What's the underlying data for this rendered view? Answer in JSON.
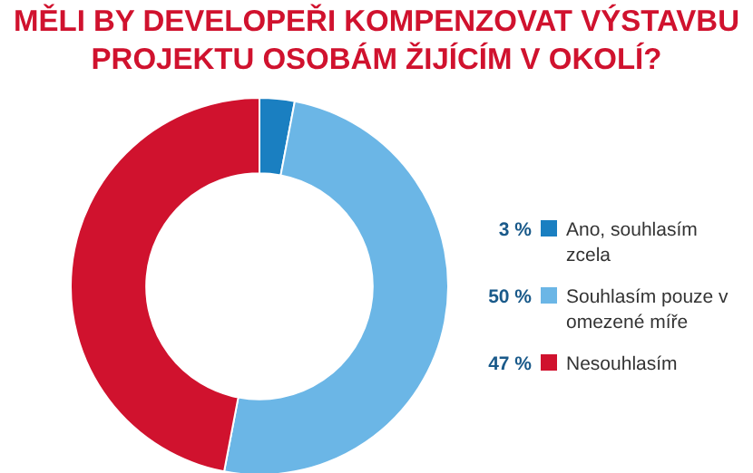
{
  "chart_data": {
    "type": "donut",
    "title": "MĚLI BY DEVELOPEŘI KOMPENZOVAT VÝSTAVBU PROJEKTU OSOBÁM ŽIJÍCÍM V OKOLÍ?",
    "categories": [
      "Ano, souhlasím zcela",
      "Souhlasím pouze v omezené míře",
      "Nesouhlasím"
    ],
    "values": [
      3,
      50,
      47
    ],
    "colors": [
      "#1a7fc1",
      "#6bb6e6",
      "#d0122e"
    ],
    "value_labels": [
      "3 %",
      "50 %",
      "47 %"
    ],
    "legend": "right"
  }
}
